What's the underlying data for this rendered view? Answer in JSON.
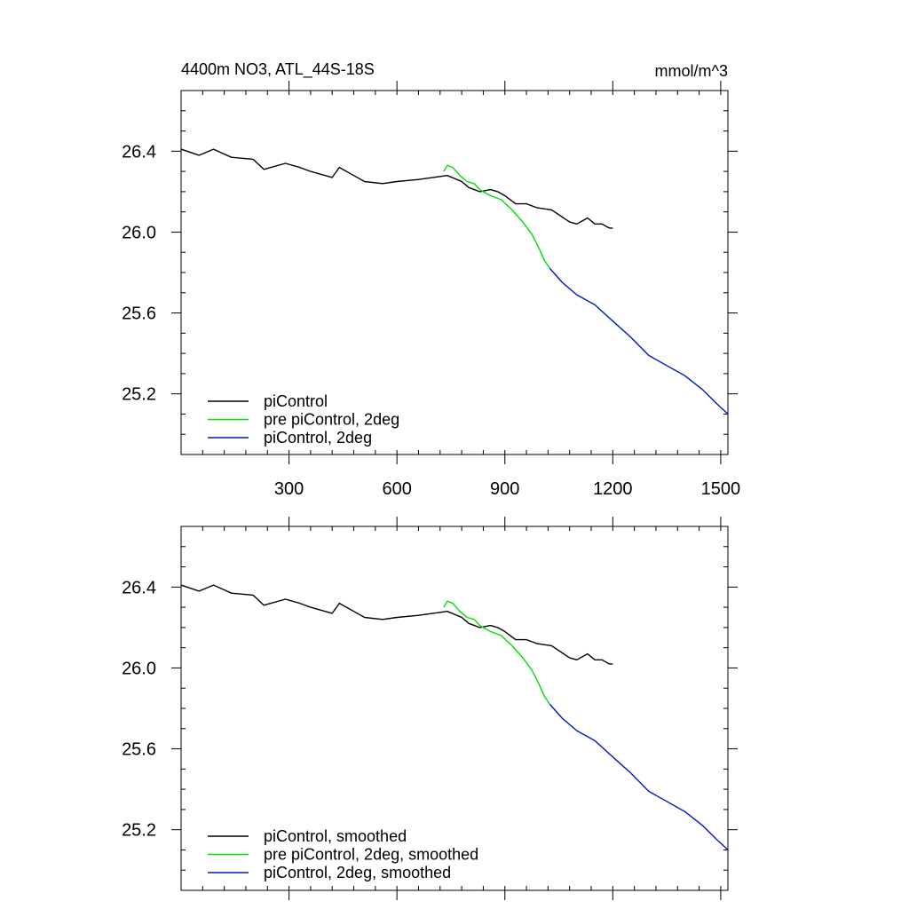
{
  "figure": {
    "title_left": "4400m NO3, ATL_44S-18S",
    "title_right": "mmol/m^3"
  },
  "chart_data": [
    {
      "type": "line",
      "panel": "top",
      "xlim": [
        0,
        1520
      ],
      "ylim": [
        24.9,
        26.7
      ],
      "x_ticks": [
        300,
        600,
        900,
        1200,
        1500
      ],
      "x_tick_labels": [
        "300",
        "600",
        "900",
        "1200",
        "1500"
      ],
      "y_ticks": [
        25.2,
        25.6,
        26.0,
        26.4
      ],
      "y_tick_labels": [
        "25.2",
        "25.6",
        "26.0",
        "26.4"
      ],
      "legend_position": "bottom-left",
      "series": [
        {
          "name": "piControl",
          "color": "#000000",
          "points": [
            [
              0,
              26.41
            ],
            [
              50,
              26.38
            ],
            [
              90,
              26.41
            ],
            [
              140,
              26.37
            ],
            [
              200,
              26.36
            ],
            [
              230,
              26.31
            ],
            [
              290,
              26.34
            ],
            [
              330,
              26.32
            ],
            [
              360,
              26.3
            ],
            [
              420,
              26.27
            ],
            [
              440,
              26.32
            ],
            [
              480,
              26.28
            ],
            [
              510,
              26.25
            ],
            [
              560,
              26.24
            ],
            [
              600,
              26.25
            ],
            [
              660,
              26.26
            ],
            [
              700,
              26.27
            ],
            [
              740,
              26.28
            ],
            [
              780,
              26.25
            ],
            [
              800,
              26.22
            ],
            [
              830,
              26.2
            ],
            [
              860,
              26.21
            ],
            [
              880,
              26.2
            ],
            [
              900,
              26.18
            ],
            [
              930,
              26.14
            ],
            [
              960,
              26.14
            ],
            [
              990,
              26.12
            ],
            [
              1030,
              26.11
            ],
            [
              1080,
              26.05
            ],
            [
              1100,
              26.04
            ],
            [
              1130,
              26.07
            ],
            [
              1150,
              26.04
            ],
            [
              1170,
              26.04
            ],
            [
              1190,
              26.02
            ],
            [
              1200,
              26.02
            ]
          ]
        },
        {
          "name": "pre piControl, 2deg",
          "color": "#00e000",
          "points": [
            [
              730,
              26.3
            ],
            [
              740,
              26.33
            ],
            [
              755,
              26.32
            ],
            [
              775,
              26.28
            ],
            [
              795,
              26.25
            ],
            [
              815,
              26.24
            ],
            [
              830,
              26.21
            ],
            [
              860,
              26.18
            ],
            [
              890,
              26.16
            ],
            [
              920,
              26.11
            ],
            [
              950,
              26.05
            ],
            [
              975,
              25.99
            ],
            [
              995,
              25.92
            ],
            [
              1010,
              25.86
            ],
            [
              1025,
              25.82
            ]
          ]
        },
        {
          "name": "piControl, 2deg",
          "color": "#0018c0",
          "points": [
            [
              1025,
              25.82
            ],
            [
              1060,
              25.75
            ],
            [
              1100,
              25.69
            ],
            [
              1150,
              25.64
            ],
            [
              1200,
              25.56
            ],
            [
              1250,
              25.48
            ],
            [
              1300,
              25.39
            ],
            [
              1350,
              25.34
            ],
            [
              1400,
              25.29
            ],
            [
              1450,
              25.22
            ],
            [
              1490,
              25.15
            ],
            [
              1520,
              25.1
            ]
          ]
        }
      ]
    },
    {
      "type": "line",
      "panel": "bottom",
      "xlim": [
        0,
        1520
      ],
      "ylim": [
        24.9,
        26.7
      ],
      "x_ticks": [
        300,
        600,
        900,
        1200,
        1500
      ],
      "y_ticks": [
        25.2,
        25.6,
        26.0,
        26.4
      ],
      "y_tick_labels": [
        "25.2",
        "25.6",
        "26.0",
        "26.4"
      ],
      "legend_position": "bottom-left",
      "series": [
        {
          "name": "piControl, smoothed",
          "color": "#000000",
          "points": [
            [
              0,
              26.41
            ],
            [
              50,
              26.38
            ],
            [
              90,
              26.41
            ],
            [
              140,
              26.37
            ],
            [
              200,
              26.36
            ],
            [
              230,
              26.31
            ],
            [
              290,
              26.34
            ],
            [
              330,
              26.32
            ],
            [
              360,
              26.3
            ],
            [
              420,
              26.27
            ],
            [
              440,
              26.32
            ],
            [
              480,
              26.28
            ],
            [
              510,
              26.25
            ],
            [
              560,
              26.24
            ],
            [
              600,
              26.25
            ],
            [
              660,
              26.26
            ],
            [
              700,
              26.27
            ],
            [
              740,
              26.28
            ],
            [
              780,
              26.25
            ],
            [
              800,
              26.22
            ],
            [
              830,
              26.2
            ],
            [
              860,
              26.21
            ],
            [
              880,
              26.2
            ],
            [
              900,
              26.18
            ],
            [
              930,
              26.14
            ],
            [
              960,
              26.14
            ],
            [
              990,
              26.12
            ],
            [
              1030,
              26.11
            ],
            [
              1080,
              26.05
            ],
            [
              1100,
              26.04
            ],
            [
              1130,
              26.07
            ],
            [
              1150,
              26.04
            ],
            [
              1170,
              26.04
            ],
            [
              1190,
              26.02
            ],
            [
              1200,
              26.02
            ]
          ]
        },
        {
          "name": "pre piControl, 2deg, smoothed",
          "color": "#00e000",
          "points": [
            [
              730,
              26.3
            ],
            [
              740,
              26.33
            ],
            [
              755,
              26.32
            ],
            [
              775,
              26.28
            ],
            [
              795,
              26.25
            ],
            [
              815,
              26.24
            ],
            [
              830,
              26.21
            ],
            [
              860,
              26.18
            ],
            [
              890,
              26.16
            ],
            [
              920,
              26.11
            ],
            [
              950,
              26.05
            ],
            [
              975,
              25.99
            ],
            [
              995,
              25.92
            ],
            [
              1010,
              25.86
            ],
            [
              1025,
              25.82
            ]
          ]
        },
        {
          "name": "piControl, 2deg, smoothed",
          "color": "#0018c0",
          "points": [
            [
              1025,
              25.82
            ],
            [
              1060,
              25.75
            ],
            [
              1100,
              25.69
            ],
            [
              1150,
              25.64
            ],
            [
              1200,
              25.56
            ],
            [
              1250,
              25.48
            ],
            [
              1300,
              25.39
            ],
            [
              1350,
              25.34
            ],
            [
              1400,
              25.29
            ],
            [
              1450,
              25.22
            ],
            [
              1490,
              25.15
            ],
            [
              1520,
              25.1
            ]
          ]
        }
      ]
    }
  ]
}
